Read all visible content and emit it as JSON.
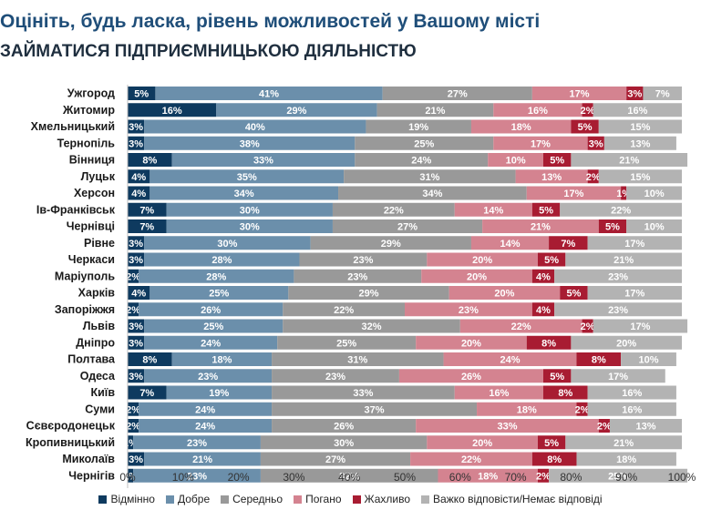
{
  "chart_data": {
    "type": "bar",
    "orientation": "horizontal",
    "stacked": true,
    "title": "Оцініть, будь ласка, рівень можливостей у Вашому місті",
    "subtitle": "ЗАЙМАТИСЯ ПІДПРИЄМНИЦЬКОЮ ДІЯЛЬНІСТЮ",
    "xlim": [
      0,
      100
    ],
    "xticks": [
      "0%",
      "10%",
      "20%",
      "30%",
      "40%",
      "50%",
      "60%",
      "70%",
      "80%",
      "90%",
      "100%"
    ],
    "categories": [
      "Ужгород",
      "Житомир",
      "Хмельницький",
      "Тернопіль",
      "Вінниця",
      "Луцьк",
      "Херсон",
      "Ів-Франківськ",
      "Чернівці",
      "Рівне",
      "Черкаси",
      "Маріуполь",
      "Харків",
      "Запоріжжя",
      "Львів",
      "Дніпро",
      "Полтава",
      "Одеса",
      "Київ",
      "Суми",
      "Сєвєродонецьк",
      "Кропивницький",
      "Миколаїв",
      "Чернігів"
    ],
    "series": [
      {
        "name": "Відмінно",
        "color": "#0e3a5f",
        "label_color": "#ffffff",
        "values": [
          5,
          16,
          3,
          3,
          8,
          4,
          4,
          7,
          7,
          3,
          3,
          2,
          4,
          2,
          3,
          3,
          8,
          3,
          7,
          2,
          2,
          1,
          3,
          1
        ],
        "labels": [
          "5%",
          "16%",
          "3%",
          "3%",
          "8%",
          "4%",
          "4%",
          "7%",
          "7%",
          "3%",
          "3%",
          "2%",
          "4%",
          "2%",
          "3%",
          "3%",
          "8%",
          "3%",
          "7%",
          "2%",
          "2%",
          "1%",
          "3%",
          "1%"
        ]
      },
      {
        "name": "Добре",
        "color": "#6b8fab",
        "label_color": "#ffffff",
        "values": [
          41,
          29,
          40,
          38,
          33,
          35,
          34,
          30,
          30,
          30,
          28,
          28,
          25,
          26,
          25,
          24,
          18,
          23,
          19,
          24,
          24,
          23,
          21,
          23
        ],
        "labels": [
          "41%",
          "29%",
          "40%",
          "38%",
          "33%",
          "35%",
          "34%",
          "30%",
          "30%",
          "30%",
          "28%",
          "28%",
          "25%",
          "26%",
          "25%",
          "24%",
          "18%",
          "23%",
          "19%",
          "24%",
          "24%",
          "23%",
          "21%",
          "23%"
        ]
      },
      {
        "name": "Середньо",
        "color": "#999999",
        "label_color": "#ffffff",
        "values": [
          27,
          21,
          19,
          25,
          24,
          31,
          34,
          22,
          27,
          29,
          23,
          23,
          29,
          22,
          32,
          25,
          31,
          23,
          33,
          37,
          26,
          30,
          27,
          32
        ],
        "labels": [
          "27%",
          "21%",
          "19%",
          "25%",
          "24%",
          "31%",
          "34%",
          "22%",
          "27%",
          "29%",
          "23%",
          "23%",
          "29%",
          "22%",
          "32%",
          "25%",
          "31%",
          "23%",
          "33%",
          "37%",
          "26%",
          "30%",
          "27%",
          "32%"
        ]
      },
      {
        "name": "Погано",
        "color": "#d48390",
        "label_color": "#ffffff",
        "values": [
          17,
          16,
          18,
          17,
          10,
          13,
          17,
          14,
          21,
          14,
          20,
          20,
          20,
          23,
          22,
          20,
          24,
          26,
          16,
          18,
          33,
          20,
          22,
          18
        ],
        "labels": [
          "17%",
          "16%",
          "18%",
          "17%",
          "10%",
          "13%",
          "17%",
          "14%",
          "21%",
          "14%",
          "20%",
          "20%",
          "20%",
          "23%",
          "22%",
          "20%",
          "24%",
          "26%",
          "16%",
          "18%",
          "33%",
          "20%",
          "22%",
          "18%"
        ]
      },
      {
        "name": "Жахливо",
        "color": "#a81c32",
        "label_color": "#ffffff",
        "values": [
          3,
          2,
          5,
          3,
          5,
          2,
          1,
          5,
          5,
          7,
          5,
          4,
          5,
          4,
          2,
          8,
          8,
          5,
          8,
          2,
          2,
          5,
          8,
          2
        ],
        "labels": [
          "3%",
          "2%",
          "5%",
          "3%",
          "5%",
          "2%",
          "1%",
          "5%",
          "5%",
          "7%",
          "5%",
          "4%",
          "5%",
          "4%",
          "2%",
          "8%",
          "8%",
          "5%",
          "8%",
          "2%",
          "2%",
          "5%",
          "8%",
          "2%"
        ]
      },
      {
        "name": "Важко відповісти/Немає відповіді",
        "color": "#b3b3b3",
        "label_color": "#ffffff",
        "values": [
          7,
          16,
          15,
          13,
          21,
          15,
          10,
          22,
          10,
          17,
          21,
          23,
          17,
          23,
          17,
          20,
          10,
          17,
          16,
          16,
          13,
          21,
          18,
          25
        ],
        "labels": [
          "7%",
          "16%",
          "15%",
          "13%",
          "21%",
          "15%",
          "10%",
          "22%",
          "10%",
          "17%",
          "21%",
          "23%",
          "17%",
          "23%",
          "17%",
          "20%",
          "10%",
          "17%",
          "16%",
          "16%",
          "13%",
          "21%",
          "18%",
          "25%"
        ]
      }
    ]
  }
}
